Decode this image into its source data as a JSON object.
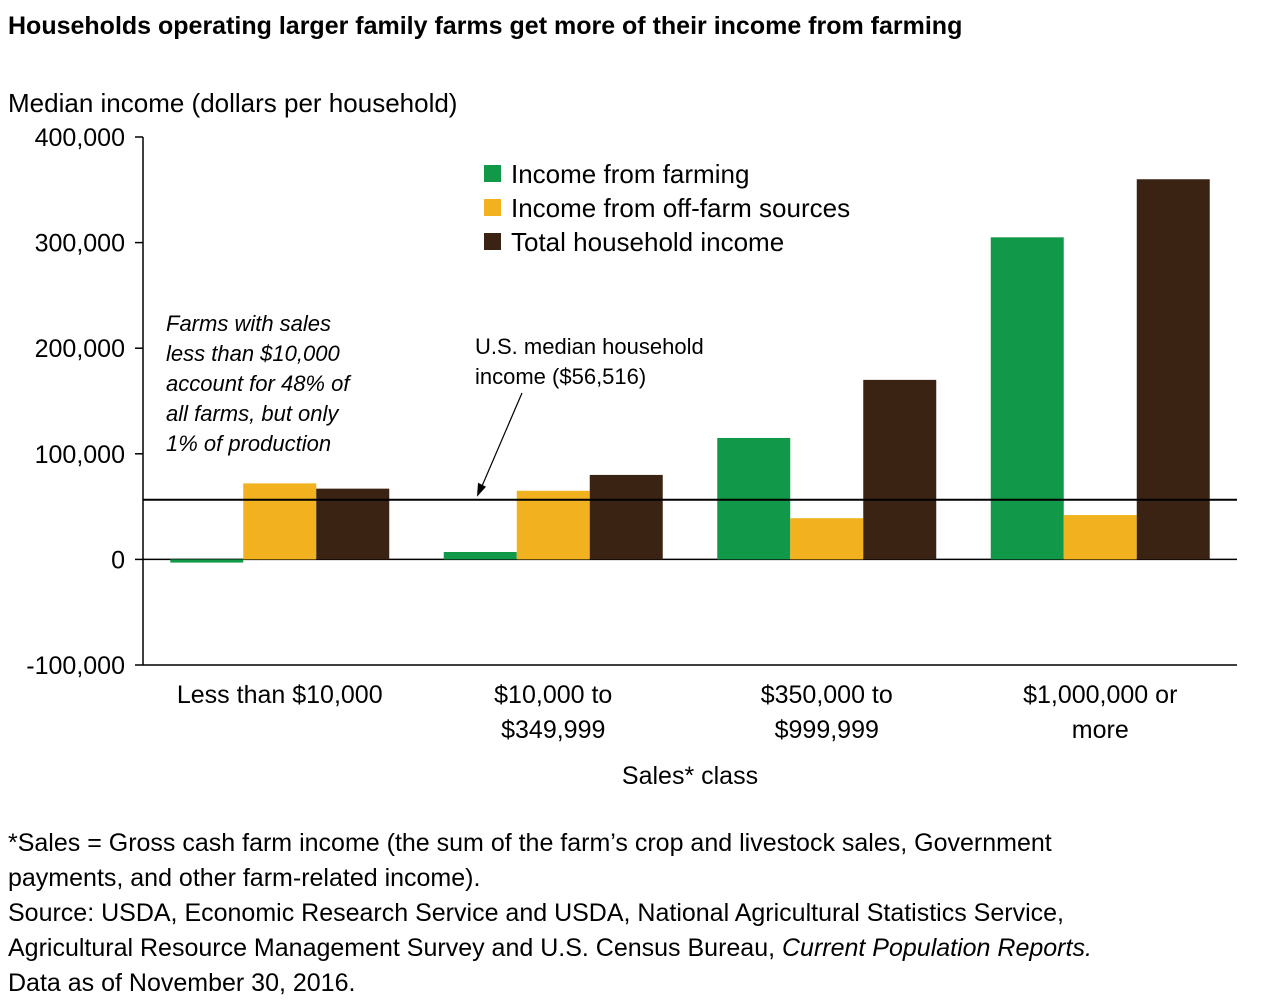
{
  "chart_data": {
    "type": "bar",
    "title": "Households operating larger family farms get more of their income from farming",
    "ylabel": "Median income (dollars per household)",
    "xlabel": "Sales* class",
    "ylim": [
      -100000,
      400000
    ],
    "yticks": [
      -100000,
      0,
      100000,
      200000,
      300000,
      400000
    ],
    "ytick_labels": [
      "-100,000",
      "0",
      "100,000",
      "200,000",
      "300,000",
      "400,000"
    ],
    "categories": [
      [
        "Less than $10,000"
      ],
      [
        "$10,000 to",
        "$349,999"
      ],
      [
        "$350,000 to",
        "$999,999"
      ],
      [
        "$1,000,000 or",
        "more"
      ]
    ],
    "series": [
      {
        "name": "Income from farming",
        "color": "#119848",
        "values": [
          -3000,
          7000,
          115000,
          305000
        ]
      },
      {
        "name": "Income from off-farm sources",
        "color": "#f2b21f",
        "values": [
          72000,
          65000,
          39000,
          42000
        ]
      },
      {
        "name": "Total household income",
        "color": "#3b2314",
        "values": [
          67000,
          80000,
          170000,
          360000
        ]
      }
    ],
    "reference_line": {
      "value": 56516,
      "label_lines": [
        "U.S. median household",
        "income ($56,516)"
      ]
    },
    "annotation_lines": [
      "Farms with sales",
      "less than $10,000",
      "account for 48% of",
      "all farms, but only",
      "1% of production"
    ],
    "legend_position": "top-center",
    "grid": false
  },
  "footnote": {
    "line1": "*Sales = Gross cash farm income (the sum of the farm’s crop and livestock sales, Government",
    "line2": "payments, and other farm-related income).",
    "line3": "Source: USDA, Economic Research Service and USDA, National Agricultural Statistics Service,",
    "line4_prefix": "Agricultural Resource Management Survey and U.S. Census Bureau, ",
    "line4_italic": "Current Population Reports.",
    "line5": "Data as of November 30, 2016."
  }
}
